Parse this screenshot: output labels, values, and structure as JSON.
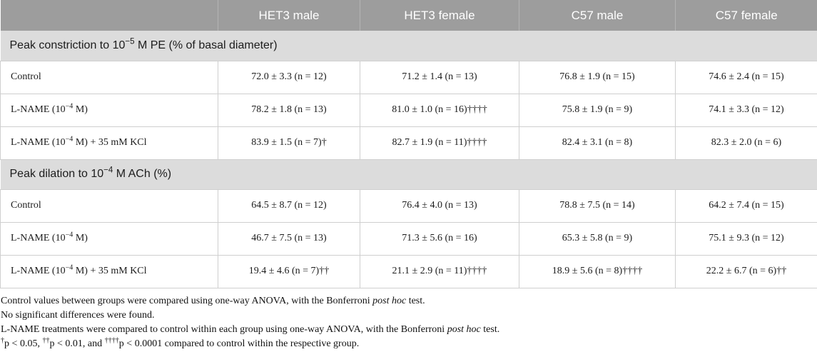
{
  "table": {
    "corner_label": "",
    "column_headers": [
      "HET3 male",
      "HET3 female",
      "C57 male",
      "C57 female"
    ],
    "sections": [
      {
        "title": "Peak constriction to 10^{−5} M PE (% of basal diameter)",
        "rows": [
          {
            "label": "Control",
            "values": [
              "72.0 ± 3.3 (n = 12)",
              "71.2 ± 1.4 (n = 13)",
              "76.8 ± 1.9 (n = 15)",
              "74.6 ± 2.4 (n = 15)"
            ]
          },
          {
            "label": "L-NAME (10^{−4} M)",
            "values": [
              "78.2 ± 1.8 (n = 13)",
              "81.0 ± 1.0 (n = 16)††††",
              "75.8 ± 1.9 (n = 9)",
              "74.1 ± 3.3 (n = 12)"
            ]
          },
          {
            "label": "L-NAME (10^{−4} M) + 35 mM KCl",
            "values": [
              "83.9 ± 1.5 (n = 7)†",
              "82.7 ± 1.9 (n = 11)††††",
              "82.4 ± 3.1 (n = 8)",
              "82.3 ± 2.0 (n = 6)"
            ]
          }
        ]
      },
      {
        "title": "Peak dilation to 10^{−4} M ACh (%)",
        "rows": [
          {
            "label": "Control",
            "values": [
              "64.5 ± 8.7 (n = 12)",
              "76.4 ± 4.0 (n = 13)",
              "78.8 ± 7.5 (n = 14)",
              "64.2 ± 7.4 (n = 15)"
            ]
          },
          {
            "label": "L-NAME (10^{−4} M)",
            "values": [
              "46.7 ± 7.5 (n = 13)",
              "71.3 ± 5.6 (n = 16)",
              "65.3 ± 5.8 (n = 9)",
              "75.1 ± 9.3 (n = 12)"
            ]
          },
          {
            "label": "L-NAME (10^{−4} M) + 35 mM KCl",
            "values": [
              "19.4 ± 4.6 (n = 7)††",
              "21.1 ± 2.9 (n = 11)††††",
              "18.9 ± 5.6 (n = 8)††††",
              "22.2 ± 6.7 (n = 6)††"
            ]
          }
        ]
      }
    ]
  },
  "footnotes": [
    "Control values between groups were compared using one-way ANOVA, with the Bonferroni *post hoc* test.",
    "No significant differences were found.",
    "L-NAME treatments were compared to control within each group using one-way ANOVA, with the Bonferroni *post hoc* test.",
    "^{†}p < 0.05, ^{††}p < 0.01, and ^{††††}p < 0.0001 compared to control within the respective group."
  ],
  "colors": {
    "header_bg": "#9d9d9d",
    "header_text": "#ffffff",
    "section_bg": "#dcdcdc",
    "grid_border": "#cfcfcf",
    "body_text": "#1c1c1c"
  }
}
